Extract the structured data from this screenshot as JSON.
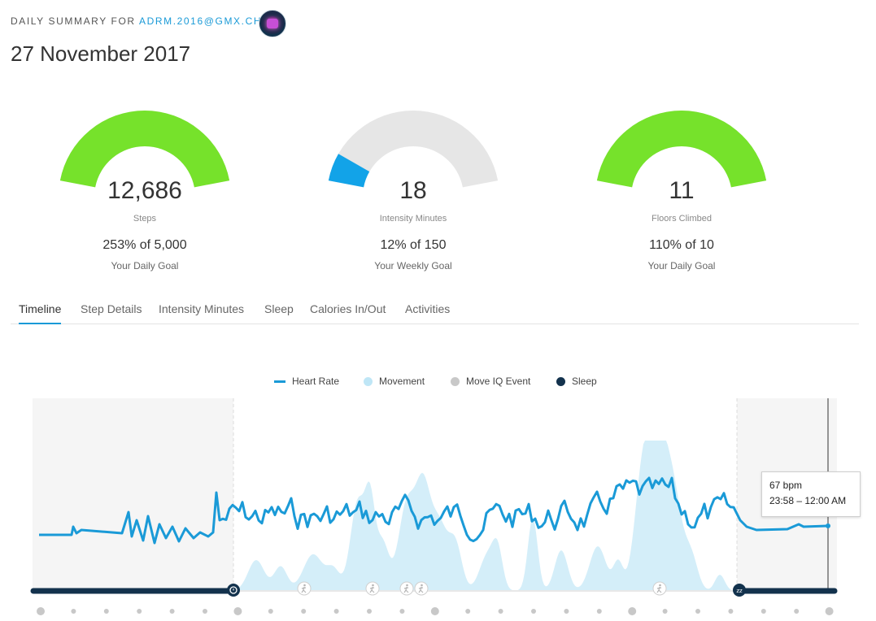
{
  "header": {
    "label": "DAILY SUMMARY FOR",
    "email": "ADRM.2016@GMX.CH",
    "date": "27 November 2017"
  },
  "gauges": [
    {
      "value": "12,686",
      "unit": "Steps",
      "percent_text": "253% of 5,000",
      "goal_text": "Your Daily Goal",
      "fill_fraction": 1.0,
      "color": "#76e22b"
    },
    {
      "value": "18",
      "unit": "Intensity Minutes",
      "percent_text": "12% of 150",
      "goal_text": "Your Weekly Goal",
      "fill_fraction": 0.12,
      "color": "#12a3e8"
    },
    {
      "value": "11",
      "unit": "Floors Climbed",
      "percent_text": "110% of 10",
      "goal_text": "Your Daily Goal",
      "fill_fraction": 1.0,
      "color": "#76e22b"
    }
  ],
  "tabs": [
    {
      "label": "Timeline",
      "active": true
    },
    {
      "label": "Step Details",
      "active": false
    },
    {
      "label": "Intensity Minutes",
      "active": false
    },
    {
      "label": "Sleep",
      "active": false
    },
    {
      "label": "Calories In/Out",
      "active": false
    },
    {
      "label": "Activities",
      "active": false
    }
  ],
  "legend": [
    {
      "label": "Heart Rate",
      "color": "#1a9ad7",
      "shape": "line"
    },
    {
      "label": "Movement",
      "color": "#bfe6f6",
      "shape": "dot"
    },
    {
      "label": "Move IQ Event",
      "color": "#c8c8c8",
      "shape": "dot"
    },
    {
      "label": "Sleep",
      "color": "#13324d",
      "shape": "dot"
    }
  ],
  "tooltip": {
    "value": "67 bpm",
    "time": "23:58 – 12:00 AM"
  },
  "colors": {
    "heart_rate": "#1a9ad7",
    "movement": "#cdebf8",
    "sleep": "#13324d",
    "sleep_shade": "#f5f5f5",
    "gauge_track": "#e6e6e6"
  },
  "icons": {
    "alarm": "alarm-clock-icon",
    "walk": "walking-icon",
    "sleep": "sleep-zz-icon"
  }
}
